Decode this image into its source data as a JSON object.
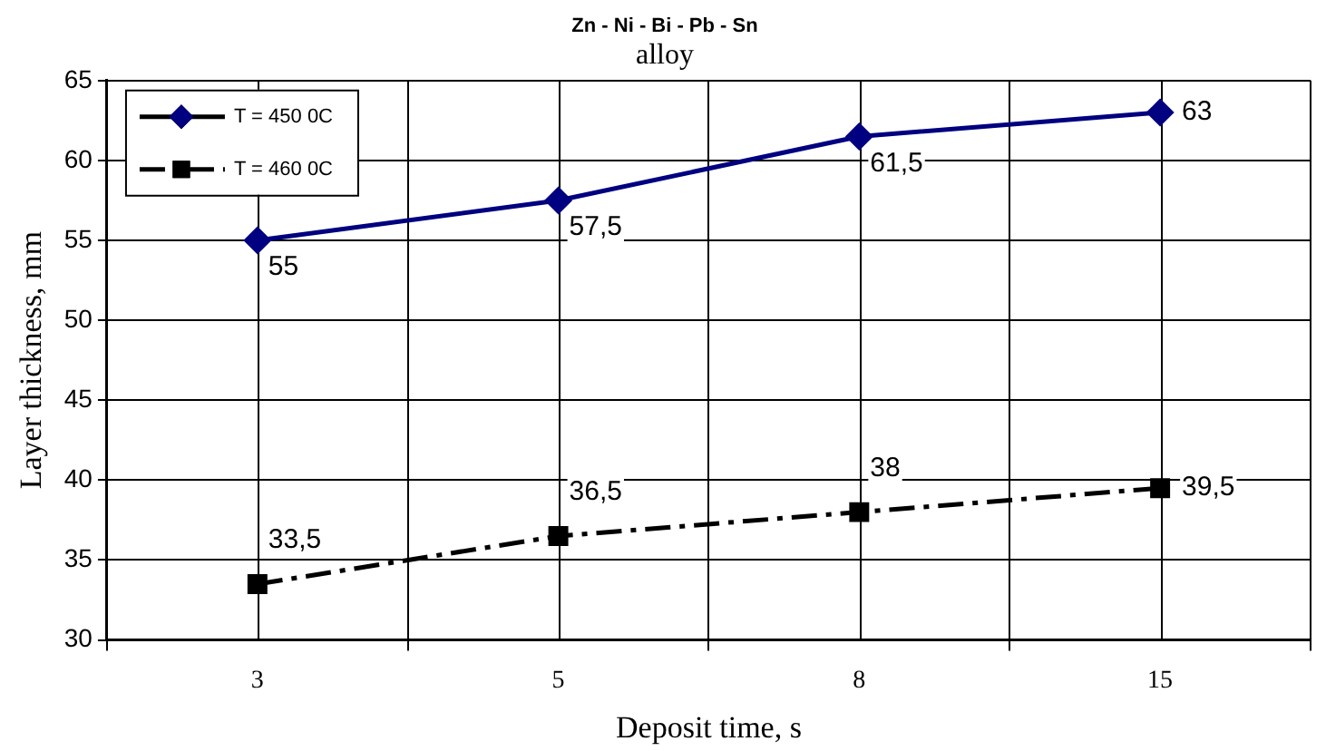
{
  "chart_data": {
    "type": "line",
    "title": "Zn - Ni - Bi - Pb - Sn",
    "subtitle": "alloy",
    "xlabel": "Deposit time, s",
    "ylabel": "Layer thickness, mm",
    "categories": [
      "3",
      "5",
      "8",
      "15"
    ],
    "series": [
      {
        "name": "T = 450 0C",
        "color": "#000080",
        "values": [
          55,
          57.5,
          61.5,
          63
        ],
        "value_labels": [
          "55",
          "57,5",
          "61,5",
          "63"
        ],
        "marker": "diamond",
        "line_style": "solid"
      },
      {
        "name": "T = 460 0C",
        "color": "#000000",
        "values": [
          33.5,
          36.5,
          38,
          39.5
        ],
        "value_labels": [
          "33,5",
          "36,5",
          "38",
          "39,5"
        ],
        "marker": "square",
        "line_style": "dashed"
      }
    ],
    "ylim": [
      30,
      65
    ],
    "yticks": [
      30,
      35,
      40,
      45,
      50,
      55,
      60,
      65
    ],
    "grid": true,
    "legend": "top left"
  }
}
